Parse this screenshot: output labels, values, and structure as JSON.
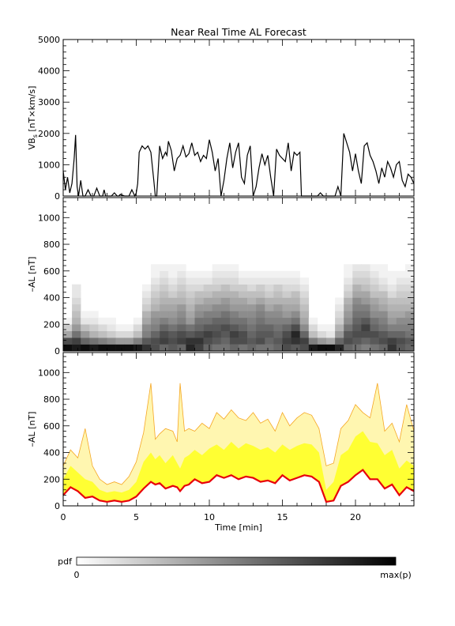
{
  "title": "Near Real Time AL Forecast",
  "colors": {
    "axis": "#000000",
    "line": "#000000",
    "band_fill": "#ffff33",
    "band_edges": "#f5a623",
    "median": "#e8000b"
  },
  "chart_data": [
    {
      "type": "line",
      "ylabel": "VB_s [nT×km/s]",
      "ylabel_main": "VB",
      "ylabel_sub": "s",
      "ylabel_rest": " [nT×km/s]",
      "xlim": [
        0,
        24
      ],
      "ylim": [
        0,
        5000
      ],
      "yticks": [
        0,
        1000,
        2000,
        3000,
        4000,
        5000
      ],
      "ytick_labels": [
        "0",
        "1000",
        "2000",
        "3000",
        "4000",
        "5000"
      ],
      "series": [
        {
          "x": [
            0.0,
            0.15,
            0.3,
            0.45,
            0.6,
            0.75,
            0.85,
            0.95,
            1.05,
            1.2,
            1.35,
            1.5,
            1.7,
            1.9,
            2.1,
            2.3,
            2.5,
            2.7,
            2.8,
            2.9,
            3.1,
            3.3,
            3.5,
            3.7,
            3.8,
            3.9,
            4.2,
            4.5,
            4.7,
            4.9,
            5.0,
            5.1,
            5.15,
            5.2,
            5.4,
            5.6,
            5.8,
            6.0,
            6.2,
            6.3,
            6.4,
            6.6,
            6.8,
            7.0,
            7.1,
            7.2,
            7.4,
            7.6,
            7.8,
            8.0,
            8.2,
            8.4,
            8.6,
            8.8,
            9.0,
            9.2,
            9.4,
            9.6,
            9.8,
            10.0,
            10.2,
            10.4,
            10.6,
            10.8,
            11.0,
            11.2,
            11.4,
            11.6,
            11.8,
            12.0,
            12.2,
            12.4,
            12.6,
            12.8,
            13.0,
            13.2,
            13.4,
            13.6,
            13.8,
            14.0,
            14.2,
            14.4,
            14.6,
            14.8,
            15.0,
            15.2,
            15.4,
            15.6,
            15.8,
            16.0,
            16.2,
            16.3,
            16.4,
            16.6,
            16.8,
            17.0,
            17.2,
            17.4,
            17.6,
            17.8,
            18.0,
            18.2,
            18.4,
            18.6,
            18.8,
            19.0,
            19.2,
            19.4,
            19.6,
            19.8,
            20.0,
            20.2,
            20.4,
            20.6,
            20.8,
            21.0,
            21.2,
            21.4,
            21.6,
            21.8,
            22.0,
            22.2,
            22.4,
            22.6,
            22.8,
            23.0,
            23.2,
            23.4,
            23.6,
            23.8,
            24.0
          ],
          "y": [
            800,
            200,
            600,
            100,
            400,
            1200,
            1950,
            300,
            0,
            500,
            0,
            0,
            200,
            0,
            0,
            250,
            0,
            0,
            200,
            0,
            0,
            0,
            100,
            0,
            0,
            50,
            0,
            0,
            200,
            0,
            100,
            400,
            900,
            1400,
            1600,
            1500,
            1600,
            1400,
            500,
            0,
            0,
            1600,
            1200,
            1400,
            1300,
            1750,
            1450,
            800,
            1200,
            1300,
            1600,
            1250,
            1350,
            1700,
            1300,
            1400,
            1100,
            1300,
            1200,
            1800,
            1400,
            800,
            1200,
            0,
            500,
            1200,
            1700,
            900,
            1400,
            1700,
            600,
            400,
            1300,
            1600,
            0,
            300,
            900,
            1350,
            1000,
            1300,
            600,
            0,
            1500,
            1300,
            1200,
            1100,
            1700,
            800,
            1400,
            1300,
            1400,
            0,
            0,
            0,
            0,
            0,
            0,
            0,
            100,
            0,
            0,
            0,
            0,
            0,
            300,
            0,
            2000,
            1700,
            1400,
            800,
            1350,
            800,
            400,
            1600,
            1700,
            1300,
            1100,
            800,
            400,
            900,
            600,
            1100,
            900,
            600,
            1000,
            1100,
            500,
            300,
            700,
            600,
            400
          ]
        }
      ]
    },
    {
      "type": "heatmap",
      "ylabel": "–AL [nT]",
      "xlim": [
        0,
        24
      ],
      "ylim": [
        0,
        1150
      ],
      "yticks": [
        0,
        200,
        400,
        600,
        800,
        1000
      ],
      "ytick_labels": [
        "0",
        "200",
        "400",
        "600",
        "800",
        "1000"
      ],
      "cells_x": [
        0.0,
        0.6,
        1.2,
        1.8,
        2.4,
        3.0,
        3.6,
        4.2,
        4.8,
        5.4,
        6.0,
        6.6,
        7.2,
        7.8,
        8.4,
        9.0,
        9.6,
        10.2,
        10.8,
        11.4,
        12.0,
        12.6,
        13.2,
        13.8,
        14.4,
        15.0,
        15.6,
        16.2,
        16.8,
        17.4,
        18.0,
        18.6,
        19.2,
        19.8,
        20.4,
        21.0,
        21.6,
        22.2,
        22.8,
        23.4
      ],
      "cells_y": [
        0,
        50,
        100,
        150,
        200,
        250,
        300,
        350,
        400,
        450,
        500,
        550,
        600
      ],
      "intensity": [
        [
          0.95,
          0.7,
          0.35,
          0.2,
          0.05,
          0.0,
          0.0,
          0.0,
          0.0,
          0.0,
          0.0,
          0.0,
          0.0
        ],
        [
          0.9,
          0.75,
          0.55,
          0.4,
          0.3,
          0.25,
          0.2,
          0.15,
          0.1,
          0.1,
          0.0,
          0.0,
          0.0
        ],
        [
          0.95,
          0.6,
          0.4,
          0.25,
          0.1,
          0.05,
          0.0,
          0.0,
          0.0,
          0.0,
          0.0,
          0.0,
          0.0
        ],
        [
          0.9,
          0.55,
          0.3,
          0.2,
          0.1,
          0.05,
          0.0,
          0.0,
          0.0,
          0.0,
          0.0,
          0.0,
          0.0
        ],
        [
          0.95,
          0.5,
          0.25,
          0.15,
          0.05,
          0.0,
          0.0,
          0.0,
          0.0,
          0.0,
          0.0,
          0.0,
          0.0
        ],
        [
          0.95,
          0.45,
          0.2,
          0.1,
          0.05,
          0.0,
          0.0,
          0.0,
          0.0,
          0.0,
          0.0,
          0.0,
          0.0
        ],
        [
          0.95,
          0.4,
          0.15,
          0.05,
          0.0,
          0.0,
          0.0,
          0.0,
          0.0,
          0.0,
          0.0,
          0.0,
          0.0
        ],
        [
          0.95,
          0.4,
          0.15,
          0.05,
          0.0,
          0.0,
          0.0,
          0.0,
          0.0,
          0.0,
          0.0,
          0.0,
          0.0
        ],
        [
          0.9,
          0.5,
          0.25,
          0.15,
          0.05,
          0.0,
          0.0,
          0.0,
          0.0,
          0.0,
          0.0,
          0.0,
          0.0
        ],
        [
          0.8,
          0.65,
          0.5,
          0.45,
          0.35,
          0.3,
          0.2,
          0.15,
          0.1,
          0.05,
          0.0,
          0.0,
          0.0
        ],
        [
          0.7,
          0.7,
          0.6,
          0.5,
          0.45,
          0.4,
          0.3,
          0.25,
          0.2,
          0.15,
          0.1,
          0.05,
          0.05
        ],
        [
          0.6,
          0.75,
          0.7,
          0.6,
          0.5,
          0.4,
          0.35,
          0.3,
          0.25,
          0.2,
          0.15,
          0.1,
          0.05
        ],
        [
          0.65,
          0.7,
          0.65,
          0.55,
          0.45,
          0.4,
          0.35,
          0.3,
          0.2,
          0.15,
          0.1,
          0.05,
          0.05
        ],
        [
          0.6,
          0.75,
          0.7,
          0.6,
          0.5,
          0.45,
          0.4,
          0.3,
          0.25,
          0.2,
          0.15,
          0.1,
          0.05
        ],
        [
          0.85,
          0.8,
          0.65,
          0.55,
          0.4,
          0.35,
          0.3,
          0.25,
          0.2,
          0.15,
          0.1,
          0.05,
          0.0
        ],
        [
          0.75,
          0.8,
          0.7,
          0.6,
          0.55,
          0.45,
          0.4,
          0.3,
          0.25,
          0.15,
          0.1,
          0.05,
          0.0
        ],
        [
          0.6,
          0.7,
          0.75,
          0.65,
          0.55,
          0.5,
          0.4,
          0.35,
          0.25,
          0.2,
          0.1,
          0.05,
          0.0
        ],
        [
          0.55,
          0.65,
          0.7,
          0.65,
          0.6,
          0.5,
          0.45,
          0.35,
          0.3,
          0.2,
          0.15,
          0.1,
          0.05
        ],
        [
          0.55,
          0.6,
          0.65,
          0.7,
          0.6,
          0.55,
          0.45,
          0.4,
          0.3,
          0.25,
          0.15,
          0.1,
          0.05
        ],
        [
          0.6,
          0.7,
          0.75,
          0.65,
          0.55,
          0.5,
          0.4,
          0.35,
          0.3,
          0.2,
          0.15,
          0.1,
          0.05
        ],
        [
          0.55,
          0.7,
          0.7,
          0.6,
          0.55,
          0.45,
          0.4,
          0.35,
          0.25,
          0.2,
          0.1,
          0.05,
          0.0
        ],
        [
          0.6,
          0.65,
          0.6,
          0.55,
          0.5,
          0.45,
          0.4,
          0.3,
          0.25,
          0.15,
          0.1,
          0.05,
          0.0
        ],
        [
          0.55,
          0.7,
          0.65,
          0.6,
          0.55,
          0.5,
          0.45,
          0.35,
          0.25,
          0.2,
          0.1,
          0.05,
          0.0
        ],
        [
          0.55,
          0.6,
          0.65,
          0.6,
          0.5,
          0.45,
          0.35,
          0.3,
          0.2,
          0.15,
          0.1,
          0.05,
          0.0
        ],
        [
          0.6,
          0.65,
          0.6,
          0.55,
          0.5,
          0.45,
          0.4,
          0.3,
          0.25,
          0.2,
          0.1,
          0.05,
          0.0
        ],
        [
          0.7,
          0.75,
          0.7,
          0.6,
          0.5,
          0.4,
          0.35,
          0.3,
          0.2,
          0.15,
          0.1,
          0.05,
          0.0
        ],
        [
          0.65,
          0.8,
          0.85,
          0.7,
          0.55,
          0.45,
          0.35,
          0.3,
          0.25,
          0.15,
          0.1,
          0.05,
          0.0
        ],
        [
          0.7,
          0.75,
          0.6,
          0.45,
          0.35,
          0.3,
          0.25,
          0.2,
          0.15,
          0.1,
          0.05,
          0.0,
          0.0
        ],
        [
          0.9,
          0.5,
          0.25,
          0.15,
          0.05,
          0.0,
          0.0,
          0.0,
          0.0,
          0.0,
          0.0,
          0.0,
          0.0
        ],
        [
          0.95,
          0.4,
          0.15,
          0.05,
          0.0,
          0.0,
          0.0,
          0.0,
          0.0,
          0.0,
          0.0,
          0.0,
          0.0
        ],
        [
          0.95,
          0.35,
          0.1,
          0.05,
          0.0,
          0.0,
          0.0,
          0.0,
          0.0,
          0.0,
          0.0,
          0.0,
          0.0
        ],
        [
          0.85,
          0.6,
          0.4,
          0.3,
          0.2,
          0.15,
          0.1,
          0.05,
          0.0,
          0.0,
          0.0,
          0.0,
          0.0
        ],
        [
          0.6,
          0.7,
          0.65,
          0.55,
          0.45,
          0.4,
          0.35,
          0.3,
          0.2,
          0.15,
          0.1,
          0.05,
          0.05
        ],
        [
          0.55,
          0.65,
          0.7,
          0.65,
          0.6,
          0.55,
          0.5,
          0.45,
          0.35,
          0.3,
          0.2,
          0.15,
          0.1
        ],
        [
          0.5,
          0.6,
          0.7,
          0.75,
          0.65,
          0.55,
          0.5,
          0.4,
          0.35,
          0.25,
          0.2,
          0.15,
          0.1
        ],
        [
          0.55,
          0.65,
          0.7,
          0.6,
          0.55,
          0.45,
          0.4,
          0.35,
          0.25,
          0.2,
          0.15,
          0.1,
          0.05
        ],
        [
          0.6,
          0.7,
          0.65,
          0.55,
          0.5,
          0.45,
          0.35,
          0.3,
          0.25,
          0.15,
          0.1,
          0.05,
          0.05
        ],
        [
          0.8,
          0.75,
          0.6,
          0.5,
          0.4,
          0.35,
          0.3,
          0.25,
          0.15,
          0.1,
          0.05,
          0.05,
          0.0
        ],
        [
          0.65,
          0.7,
          0.6,
          0.5,
          0.45,
          0.35,
          0.3,
          0.25,
          0.2,
          0.15,
          0.1,
          0.05,
          0.0
        ],
        [
          0.6,
          0.65,
          0.55,
          0.5,
          0.45,
          0.4,
          0.3,
          0.25,
          0.2,
          0.15,
          0.1,
          0.05,
          0.05
        ]
      ]
    },
    {
      "type": "area",
      "ylabel": "–AL [nT]",
      "xlabel": "Time [min]",
      "xlim": [
        0,
        24
      ],
      "ylim": [
        0,
        1150
      ],
      "xticks": [
        0,
        5,
        10,
        15,
        20
      ],
      "xtick_labels": [
        "0",
        "5",
        "10",
        "15",
        "20"
      ],
      "yticks": [
        0,
        200,
        400,
        600,
        800,
        1000
      ],
      "ytick_labels": [
        "0",
        "200",
        "400",
        "600",
        "800",
        "1000"
      ],
      "x": [
        0.0,
        0.5,
        1.0,
        1.5,
        2.0,
        2.5,
        3.0,
        3.5,
        4.0,
        4.5,
        5.0,
        5.5,
        6.0,
        6.3,
        6.6,
        7.0,
        7.5,
        7.8,
        8.0,
        8.3,
        8.6,
        9.0,
        9.5,
        10.0,
        10.5,
        11.0,
        11.5,
        12.0,
        12.5,
        13.0,
        13.5,
        14.0,
        14.5,
        15.0,
        15.5,
        16.0,
        16.5,
        17.0,
        17.5,
        18.0,
        18.5,
        19.0,
        19.5,
        20.0,
        20.5,
        21.0,
        21.5,
        22.0,
        22.5,
        23.0,
        23.5,
        24.0
      ],
      "median": [
        80,
        140,
        110,
        60,
        70,
        40,
        30,
        40,
        30,
        40,
        70,
        130,
        180,
        160,
        170,
        130,
        150,
        140,
        110,
        150,
        160,
        200,
        170,
        180,
        230,
        210,
        230,
        200,
        220,
        210,
        180,
        190,
        170,
        230,
        190,
        210,
        230,
        220,
        180,
        30,
        40,
        150,
        180,
        230,
        270,
        200,
        200,
        130,
        160,
        80,
        140,
        110
      ],
      "inner_upper": [
        200,
        300,
        250,
        200,
        180,
        120,
        100,
        110,
        100,
        120,
        180,
        330,
        400,
        350,
        380,
        320,
        380,
        320,
        280,
        360,
        380,
        420,
        380,
        430,
        460,
        420,
        480,
        430,
        470,
        450,
        420,
        440,
        400,
        460,
        420,
        450,
        470,
        460,
        400,
        120,
        180,
        380,
        420,
        520,
        560,
        480,
        470,
        380,
        420,
        280,
        340,
        300
      ],
      "outer_upper": [
        300,
        420,
        360,
        580,
        300,
        200,
        160,
        180,
        160,
        220,
        330,
        550,
        920,
        500,
        540,
        580,
        560,
        480,
        920,
        560,
        580,
        560,
        620,
        580,
        700,
        650,
        720,
        660,
        640,
        700,
        620,
        650,
        560,
        700,
        600,
        660,
        700,
        680,
        580,
        300,
        320,
        580,
        640,
        760,
        700,
        660,
        920,
        560,
        620,
        480,
        760,
        560
      ]
    },
    {
      "type": "colorbar",
      "label": "pdf",
      "min_label": "0",
      "max_label": "max(p)"
    }
  ]
}
